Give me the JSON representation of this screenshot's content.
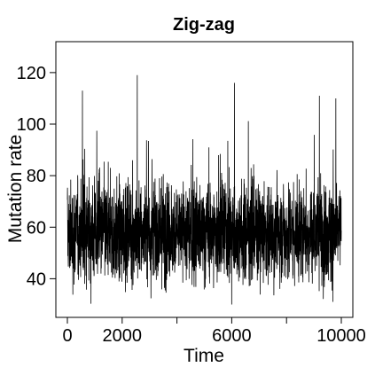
{
  "chart_data": {
    "type": "line",
    "title": "Zig-zag",
    "xlabel": "Time",
    "ylabel": "Mutation rate",
    "xlim": [
      0,
      10000
    ],
    "ylim": [
      25,
      132
    ],
    "x_ticks": [
      0,
      2000,
      6000,
      10000
    ],
    "x_tick_labels": [
      "0",
      "2000",
      "6000",
      "10000"
    ],
    "x_minor_ticks": [
      4000,
      8000
    ],
    "y_ticks": [
      40,
      60,
      80,
      100,
      120
    ],
    "y_tick_labels": [
      "40",
      "60",
      "80",
      "100",
      "120"
    ],
    "grid": false,
    "legend": "none",
    "series": [
      {
        "color": "#000000",
        "description_of_values": "noisy trace around mean 58",
        "x_start": 0,
        "x_end": 10000,
        "n_points": 10000,
        "mean": 58,
        "approx_typical_range": [
          40,
          80
        ],
        "observed_min": 30,
        "observed_max": 119,
        "notable_peaks": [
          {
            "x": 550,
            "y": 113
          },
          {
            "x": 2550,
            "y": 119
          },
          {
            "x": 6100,
            "y": 116
          },
          {
            "x": 9200,
            "y": 111
          },
          {
            "x": 9800,
            "y": 110
          }
        ]
      }
    ]
  }
}
